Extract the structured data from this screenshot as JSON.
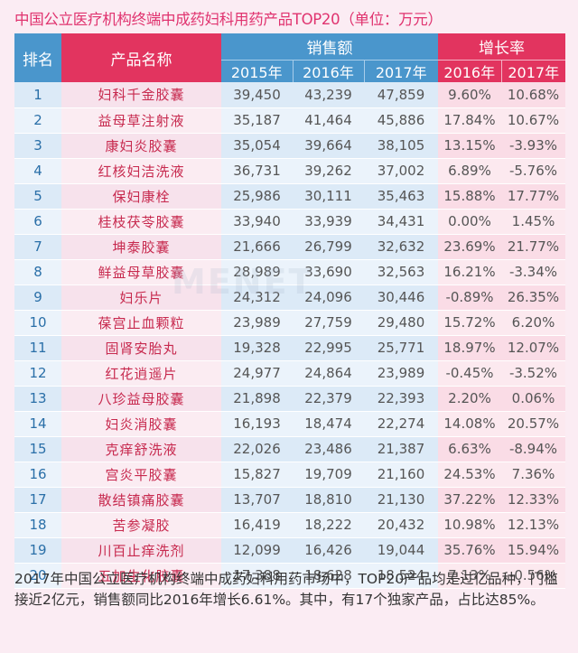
{
  "title": "中国公立医疗机构终端中成药妇科用药产品TOP20（单位：万元）",
  "table": {
    "header": {
      "rank": "排名",
      "name": "产品名称",
      "sales": "销售额",
      "growth": "增长率",
      "sales_years": [
        "2015年",
        "2016年",
        "2017年"
      ],
      "growth_years": [
        "2016年",
        "2017年"
      ]
    },
    "rows": [
      {
        "rank": "1",
        "name": "妇科千金胶囊",
        "s2015": "39,450",
        "s2016": "43,239",
        "s2017": "47,859",
        "g2016": "9.60%",
        "g2017": "10.68%"
      },
      {
        "rank": "2",
        "name": "益母草注射液",
        "s2015": "35,187",
        "s2016": "41,464",
        "s2017": "45,886",
        "g2016": "17.84%",
        "g2017": "10.67%"
      },
      {
        "rank": "3",
        "name": "康妇炎胶囊",
        "s2015": "35,054",
        "s2016": "39,664",
        "s2017": "38,105",
        "g2016": "13.15%",
        "g2017": "-3.93%"
      },
      {
        "rank": "4",
        "name": "红核妇洁洗液",
        "s2015": "36,731",
        "s2016": "39,262",
        "s2017": "37,002",
        "g2016": "6.89%",
        "g2017": "-5.76%"
      },
      {
        "rank": "5",
        "name": "保妇康栓",
        "s2015": "25,986",
        "s2016": "30,111",
        "s2017": "35,463",
        "g2016": "15.88%",
        "g2017": "17.77%"
      },
      {
        "rank": "6",
        "name": "桂枝茯苓胶囊",
        "s2015": "33,940",
        "s2016": "33,939",
        "s2017": "34,431",
        "g2016": "0.00%",
        "g2017": "1.45%"
      },
      {
        "rank": "7",
        "name": "坤泰胶囊",
        "s2015": "21,666",
        "s2016": "26,799",
        "s2017": "32,632",
        "g2016": "23.69%",
        "g2017": "21.77%"
      },
      {
        "rank": "8",
        "name": "鲜益母草胶囊",
        "s2015": "28,989",
        "s2016": "33,690",
        "s2017": "32,563",
        "g2016": "16.21%",
        "g2017": "-3.34%"
      },
      {
        "rank": "9",
        "name": "妇乐片",
        "s2015": "24,312",
        "s2016": "24,096",
        "s2017": "30,446",
        "g2016": "-0.89%",
        "g2017": "26.35%"
      },
      {
        "rank": "10",
        "name": "葆宫止血颗粒",
        "s2015": "23,989",
        "s2016": "27,759",
        "s2017": "29,480",
        "g2016": "15.72%",
        "g2017": "6.20%"
      },
      {
        "rank": "11",
        "name": "固肾安胎丸",
        "s2015": "19,328",
        "s2016": "22,995",
        "s2017": "25,771",
        "g2016": "18.97%",
        "g2017": "12.07%"
      },
      {
        "rank": "12",
        "name": "红花逍遥片",
        "s2015": "24,977",
        "s2016": "24,864",
        "s2017": "23,989",
        "g2016": "-0.45%",
        "g2017": "-3.52%"
      },
      {
        "rank": "13",
        "name": "八珍益母胶囊",
        "s2015": "21,898",
        "s2016": "22,379",
        "s2017": "22,393",
        "g2016": "2.20%",
        "g2017": "0.06%"
      },
      {
        "rank": "14",
        "name": "妇炎消胶囊",
        "s2015": "16,193",
        "s2016": "18,474",
        "s2017": "22,274",
        "g2016": "14.08%",
        "g2017": "20.57%"
      },
      {
        "rank": "15",
        "name": "克痒舒洗液",
        "s2015": "22,026",
        "s2016": "23,486",
        "s2017": "21,387",
        "g2016": "6.63%",
        "g2017": "-8.94%"
      },
      {
        "rank": "16",
        "name": "宫炎平胶囊",
        "s2015": "15,827",
        "s2016": "19,709",
        "s2017": "21,160",
        "g2016": "24.53%",
        "g2017": "7.36%"
      },
      {
        "rank": "17",
        "name": "散结镇痛胶囊",
        "s2015": "13,707",
        "s2016": "18,810",
        "s2017": "21,130",
        "g2016": "37.22%",
        "g2017": "12.33%"
      },
      {
        "rank": "18",
        "name": "苦参凝胶",
        "s2015": "16,419",
        "s2016": "18,222",
        "s2017": "20,432",
        "g2016": "10.98%",
        "g2017": "12.13%"
      },
      {
        "rank": "19",
        "name": "川百止痒洗剂",
        "s2015": "12,099",
        "s2016": "16,426",
        "s2017": "19,044",
        "g2016": "35.76%",
        "g2017": "15.94%"
      },
      {
        "rank": "20",
        "name": "五加生化胶囊",
        "s2015": "17,388",
        "s2016": "18,628",
        "s2017": "18,524",
        "g2016": "7.13%",
        "g2017": "-0.56%"
      }
    ]
  },
  "watermark": "MENET",
  "footer": "2017年中国公立医疗机构终端中成药妇科用药市场中，TOP20产品均是过亿品种，门槛接近2亿元，销售额同比2016年增长6.61%。其中，有17个独家产品，占比达85%。",
  "colors": {
    "title": "#e0336f",
    "header_blue": "#4a96cc",
    "header_red": "#e2345f",
    "background": "#fbecf3"
  }
}
